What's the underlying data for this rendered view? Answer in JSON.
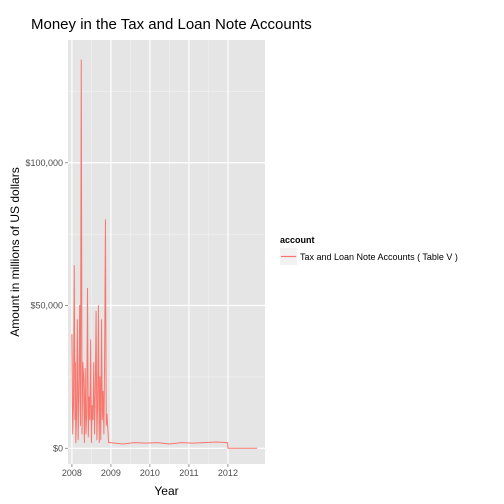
{
  "chart_data": {
    "type": "line",
    "title": "Money in the Tax and Loan Note Accounts",
    "xlabel": "Year",
    "ylabel": "Amount in millions of US dollars",
    "xlim": [
      2007.9,
      2012.95
    ],
    "ylim": [
      -5500,
      143000
    ],
    "x_ticks": [
      2008,
      2009,
      2010,
      2011,
      2012
    ],
    "x_tick_labels": [
      "2008",
      "2009",
      "2010",
      "2011",
      "2012"
    ],
    "y_ticks": [
      0,
      50000,
      100000
    ],
    "y_tick_labels": [
      "$0",
      "$50,000",
      "$100,000"
    ],
    "grid": true,
    "background_color": "#e5e5e5",
    "legend": {
      "title": "account",
      "placement": "right",
      "entries": [
        {
          "label": "Tax and Loan Note Accounts ( Table V )",
          "color": "#f8766d"
        }
      ]
    },
    "series": [
      {
        "name": "Tax and Loan Note Accounts ( Table V )",
        "color": "#f8766d",
        "x": [
          2008.0,
          2008.02,
          2008.04,
          2008.06,
          2008.08,
          2008.09,
          2008.1,
          2008.12,
          2008.14,
          2008.16,
          2008.18,
          2008.2,
          2008.22,
          2008.24,
          2008.26,
          2008.28,
          2008.3,
          2008.32,
          2008.34,
          2008.36,
          2008.38,
          2008.4,
          2008.42,
          2008.44,
          2008.46,
          2008.48,
          2008.5,
          2008.52,
          2008.54,
          2008.56,
          2008.58,
          2008.6,
          2008.62,
          2008.64,
          2008.66,
          2008.68,
          2008.7,
          2008.72,
          2008.74,
          2008.76,
          2008.78,
          2008.8,
          2008.82,
          2008.84,
          2008.86,
          2008.88,
          2008.9,
          2008.94,
          2009.0,
          2009.3,
          2009.6,
          2009.9,
          2010.2,
          2010.5,
          2010.8,
          2011.1,
          2011.4,
          2011.7,
          2011.99,
          2012.0,
          2012.75
        ],
        "y": [
          40000,
          5000,
          15000,
          64000,
          10000,
          30000,
          2000,
          12000,
          45000,
          3000,
          20000,
          50000,
          8000,
          136000,
          5000,
          30000,
          25000,
          2000,
          28000,
          5000,
          12000,
          56000,
          4000,
          18000,
          10000,
          38000,
          2000,
          15000,
          10000,
          30000,
          5000,
          20000,
          48000,
          3000,
          15000,
          50000,
          2000,
          25000,
          3000,
          45000,
          10000,
          20000,
          5000,
          34000,
          80000,
          8000,
          12000,
          2000,
          2000,
          1500,
          2000,
          1800,
          2000,
          1500,
          2000,
          1800,
          2000,
          2200,
          2000,
          0,
          0
        ]
      }
    ]
  }
}
